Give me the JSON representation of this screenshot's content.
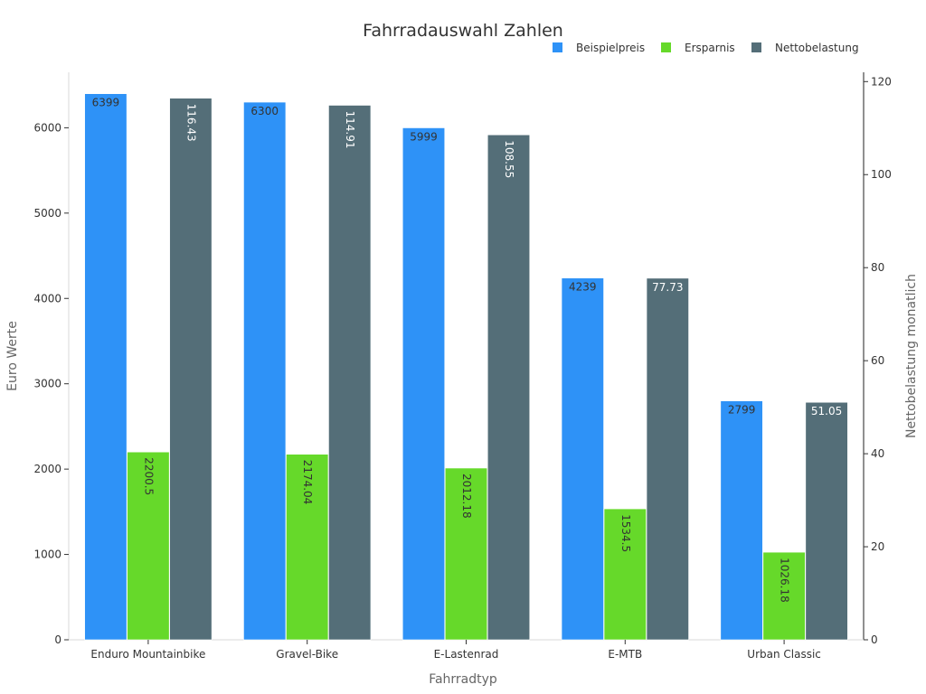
{
  "chart_data": {
    "type": "bar",
    "title": "Fahrradauswahl Zahlen",
    "xlabel": "Fahrradtyp",
    "ylabel": "Euro Werte",
    "y2label": "Nettobelastung monatlich",
    "categories": [
      "Enduro Mountainbike",
      "Gravel-Bike",
      "E-Lastenrad",
      "E-MTB",
      "Urban Classic"
    ],
    "ylim": [
      0,
      6650
    ],
    "y2lim": [
      0,
      122
    ],
    "yticks": [
      0,
      1000,
      2000,
      3000,
      4000,
      5000,
      6000
    ],
    "y2ticks": [
      0,
      20,
      40,
      60,
      80,
      100,
      120
    ],
    "grid": false,
    "legend_position": "top-right",
    "series": [
      {
        "name": "Beispielpreis",
        "axis": "left",
        "color": "#2e92f7",
        "label_color": "#333333",
        "values": [
          6399,
          6300,
          5999,
          4239,
          2799
        ],
        "labels": [
          "6399",
          "6300",
          "5999",
          "4239",
          "2799"
        ]
      },
      {
        "name": "Ersparnis",
        "axis": "left",
        "color": "#66d92a",
        "label_color": "#333333",
        "values": [
          2200.5,
          2174.04,
          2012.18,
          1534.5,
          1026.18
        ],
        "labels": [
          "2200.5",
          "2174.04",
          "2012.18",
          "1534.5",
          "1026.18"
        ]
      },
      {
        "name": "Nettobelastung",
        "axis": "right",
        "color": "#546e78",
        "label_color": "#ffffff",
        "values": [
          116.43,
          114.91,
          108.55,
          77.73,
          51.05
        ],
        "labels": [
          "116.43",
          "114.91",
          "108.55",
          "77.73",
          "51.05"
        ]
      }
    ]
  }
}
